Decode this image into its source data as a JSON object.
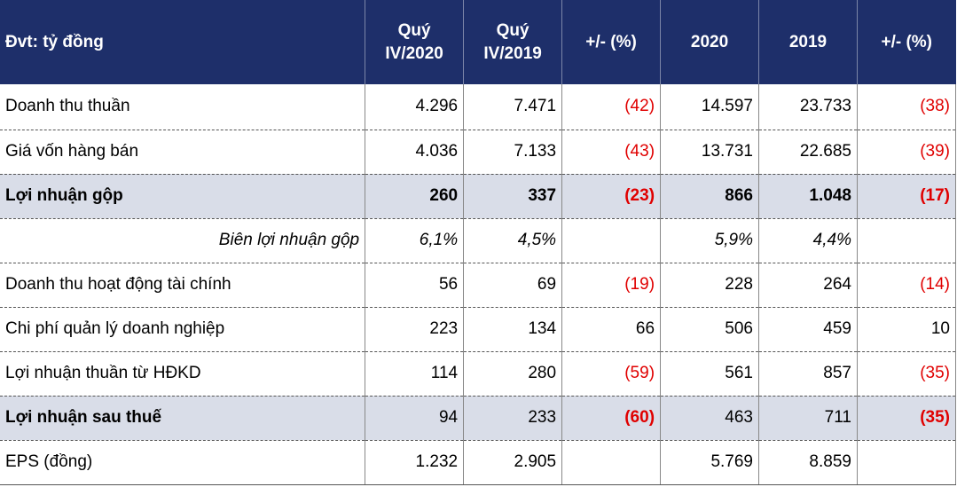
{
  "header": {
    "unit_label": "Đvt: tỷ đồng",
    "col1_line1": "Quý",
    "col1_line2": "IV/2020",
    "col2_line1": "Quý",
    "col2_line2": "IV/2019",
    "col3": "+/- (%)",
    "col4": "2020",
    "col5": "2019",
    "col6": "+/- (%)"
  },
  "rows": [
    {
      "label": "Doanh thu thuần",
      "q4_2020": "4.296",
      "q4_2019": "7.471",
      "q_change": "(42)",
      "y2020": "14.597",
      "y2019": "23.733",
      "y_change": "(38)"
    },
    {
      "label": "Giá vốn hàng bán",
      "q4_2020": "4.036",
      "q4_2019": "7.133",
      "q_change": "(43)",
      "y2020": "13.731",
      "y2019": "22.685",
      "y_change": "(39)"
    },
    {
      "label": "Lợi nhuận gộp",
      "q4_2020": "260",
      "q4_2019": "337",
      "q_change": "(23)",
      "y2020": "866",
      "y2019": "1.048",
      "y_change": "(17)"
    },
    {
      "label": "Biên lợi nhuận gộp",
      "q4_2020": "6,1%",
      "q4_2019": "4,5%",
      "q_change": "",
      "y2020": "5,9%",
      "y2019": "4,4%",
      "y_change": ""
    },
    {
      "label": "Doanh thu hoạt động tài chính",
      "q4_2020": "56",
      "q4_2019": "69",
      "q_change": "(19)",
      "y2020": "228",
      "y2019": "264",
      "y_change": "(14)"
    },
    {
      "label": "Chi phí quản lý doanh nghiệp",
      "q4_2020": "223",
      "q4_2019": "134",
      "q_change": "66",
      "y2020": "506",
      "y2019": "459",
      "y_change": "10"
    },
    {
      "label": "Lợi nhuận thuần từ HĐKD",
      "q4_2020": "114",
      "q4_2019": "280",
      "q_change": "(59)",
      "y2020": "561",
      "y2019": "857",
      "y_change": "(35)"
    },
    {
      "label": "Lợi nhuận sau thuế",
      "q4_2020": "94",
      "q4_2019": "233",
      "q_change": "(60)",
      "y2020": "463",
      "y2019": "711",
      "y_change": "(35)"
    },
    {
      "label": "EPS (đồng)",
      "q4_2020": "1.232",
      "q4_2019": "2.905",
      "q_change": "",
      "y2020": "5.769",
      "y2019": "8.859",
      "y_change": ""
    }
  ],
  "colors": {
    "header_bg": "#1e2f6a",
    "highlight_bg": "#d9dde8",
    "negative": "#e00000"
  }
}
